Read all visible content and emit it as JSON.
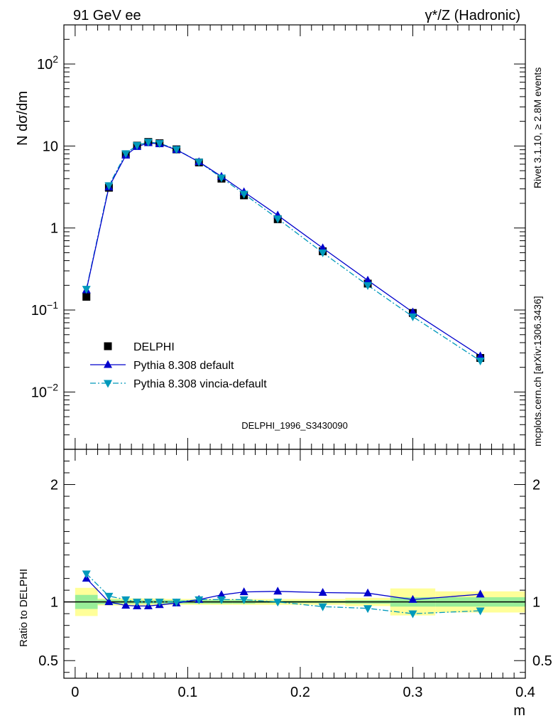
{
  "header": {
    "left": "91 GeV ee",
    "right": "γ*/Z (Hadronic)"
  },
  "side_labels": {
    "rivet": "Rivet 3.1.10, ≥ 2.8M events",
    "mcplots": "mcplots.cern.ch [arXiv:1306.3436]"
  },
  "watermark": "DELPHI_1996_S3430090",
  "chart_data": [
    {
      "type": "scatter",
      "panel": "main",
      "ylabel": "N dσ/dm",
      "yscale": "log",
      "ylim": [
        0.002,
        300
      ],
      "xlim": [
        -0.01,
        0.4
      ],
      "legend_position": "lower-left",
      "ytick_labels": [
        "10^-2",
        "10^-1",
        "1",
        "10",
        "10^2"
      ],
      "series": [
        {
          "name": "DELPHI",
          "marker": "square",
          "color": "#000000",
          "x": [
            0.01,
            0.03,
            0.045,
            0.055,
            0.065,
            0.075,
            0.09,
            0.11,
            0.13,
            0.15,
            0.18,
            0.22,
            0.26,
            0.3,
            0.36
          ],
          "y": [
            0.145,
            3.1,
            7.9,
            10.1,
            11.2,
            10.8,
            9.1,
            6.3,
            4.0,
            2.5,
            1.28,
            0.52,
            0.21,
            0.092,
            0.026
          ]
        },
        {
          "name": "Pythia 8.308 default",
          "marker": "triangle-up",
          "color": "#0000cc",
          "line": "solid",
          "x": [
            0.01,
            0.03,
            0.045,
            0.055,
            0.065,
            0.075,
            0.09,
            0.11,
            0.13,
            0.15,
            0.18,
            0.22,
            0.26,
            0.3,
            0.36
          ],
          "y": [
            0.175,
            3.15,
            7.7,
            9.8,
            10.9,
            10.6,
            9.0,
            6.4,
            4.25,
            2.75,
            1.43,
            0.57,
            0.23,
            0.094,
            0.0275
          ]
        },
        {
          "name": "Pythia 8.308 vincia-default",
          "marker": "triangle-down",
          "color": "#0099bb",
          "line": "dashdot",
          "x": [
            0.01,
            0.03,
            0.045,
            0.055,
            0.065,
            0.075,
            0.09,
            0.11,
            0.13,
            0.15,
            0.18,
            0.22,
            0.26,
            0.3,
            0.36
          ],
          "y": [
            0.18,
            3.3,
            8.1,
            10.2,
            11.2,
            10.8,
            9.1,
            6.4,
            4.1,
            2.6,
            1.3,
            0.5,
            0.2,
            0.083,
            0.024
          ]
        }
      ]
    },
    {
      "type": "line",
      "panel": "ratio",
      "ylabel": "Ratio to DELPHI",
      "xlabel": "m",
      "ylim": [
        0.35,
        2.3
      ],
      "xlim": [
        -0.01,
        0.4
      ],
      "ytick_labels": [
        "0.5",
        "1",
        "2"
      ],
      "xtick_labels": [
        "0",
        "0.1",
        "0.2",
        "0.3",
        "0.4"
      ],
      "bands": {
        "bin_edges": [
          0,
          0.02,
          0.04,
          0.05,
          0.06,
          0.07,
          0.08,
          0.1,
          0.12,
          0.14,
          0.16,
          0.2,
          0.24,
          0.28,
          0.32,
          0.4
        ],
        "stat_lo": [
          0.94,
          0.98,
          0.985,
          0.985,
          0.985,
          0.985,
          0.985,
          0.985,
          0.985,
          0.985,
          0.99,
          0.99,
          0.985,
          0.96,
          0.96
        ],
        "stat_hi": [
          1.06,
          1.02,
          1.015,
          1.015,
          1.015,
          1.015,
          1.015,
          1.015,
          1.015,
          1.015,
          1.01,
          1.01,
          1.015,
          1.04,
          1.04
        ],
        "total_lo": [
          0.88,
          0.97,
          0.97,
          0.97,
          0.97,
          0.97,
          0.975,
          0.975,
          0.975,
          0.975,
          0.975,
          0.975,
          0.965,
          0.885,
          0.91
        ],
        "total_hi": [
          1.12,
          1.03,
          1.03,
          1.03,
          1.03,
          1.03,
          1.025,
          1.025,
          1.025,
          1.025,
          1.025,
          1.025,
          1.035,
          1.115,
          1.09
        ]
      },
      "series": [
        {
          "name": "Pythia 8.308 default",
          "color": "#0000cc",
          "x": [
            0.01,
            0.03,
            0.045,
            0.055,
            0.065,
            0.075,
            0.09,
            0.11,
            0.13,
            0.15,
            0.18,
            0.22,
            0.26,
            0.3,
            0.36
          ],
          "y": [
            1.2,
            1.0,
            0.97,
            0.965,
            0.965,
            0.975,
            0.99,
            1.02,
            1.06,
            1.085,
            1.09,
            1.08,
            1.075,
            1.02,
            1.065
          ]
        },
        {
          "name": "Pythia 8.308 vincia-default",
          "color": "#0099bb",
          "x": [
            0.01,
            0.03,
            0.045,
            0.055,
            0.065,
            0.075,
            0.09,
            0.11,
            0.13,
            0.15,
            0.18,
            0.22,
            0.26,
            0.3,
            0.36
          ],
          "y": [
            1.24,
            1.05,
            1.02,
            1.0,
            1.0,
            1.0,
            1.0,
            1.02,
            1.02,
            1.02,
            1.0,
            0.96,
            0.945,
            0.9,
            0.925
          ]
        }
      ]
    }
  ]
}
